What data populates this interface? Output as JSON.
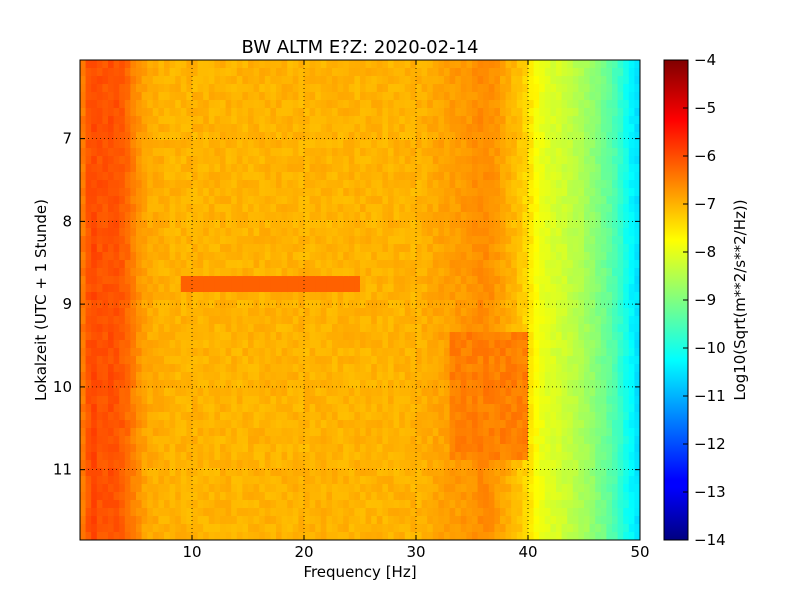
{
  "chart_data": {
    "type": "heatmap",
    "title": "BW ALTM E?Z: 2020-02-14",
    "xlabel": "Frequency [Hz]",
    "ylabel": "Lokalzeit (UTC + 1 Stunde)",
    "xlim": [
      0,
      50
    ],
    "ylim": [
      11.85,
      6.05
    ],
    "x_ticks": [
      10,
      20,
      30,
      40,
      50
    ],
    "y_ticks": [
      7,
      8,
      9,
      10,
      11
    ],
    "grid": true,
    "colormap": "jet",
    "colorbar": {
      "label": "Log10(Sqrt(m**2/s**2/Hz))",
      "range": [
        -14,
        -4
      ],
      "ticks": [
        -4,
        -5,
        -6,
        -7,
        -8,
        -9,
        -10,
        -11,
        -12,
        -13,
        -14
      ]
    },
    "spectrum_profile": {
      "frequency_hz": [
        0,
        1,
        2,
        3,
        4,
        5,
        6,
        8,
        10,
        15,
        20,
        25,
        30,
        33,
        35,
        36,
        37,
        38,
        39,
        40,
        41,
        42,
        43,
        44,
        45,
        46,
        47,
        48,
        49,
        50
      ],
      "log10_amplitude": [
        -6.6,
        -5.9,
        -6.1,
        -6.0,
        -6.2,
        -6.6,
        -6.9,
        -7.0,
        -7.0,
        -7.0,
        -7.0,
        -7.0,
        -7.0,
        -6.8,
        -6.7,
        -6.6,
        -6.7,
        -6.9,
        -7.1,
        -7.4,
        -7.9,
        -8.1,
        -8.2,
        -8.4,
        -8.6,
        -8.9,
        -9.2,
        -9.6,
        -10.2,
        -10.6
      ]
    },
    "features": [
      {
        "frequency_range_hz": [
          9,
          25
        ],
        "time": 8.74,
        "log10_amplitude": -6.2
      },
      {
        "frequency_range_hz": [
          33,
          40
        ],
        "time_range": [
          9.35,
          10.9
        ],
        "log10_amplitude": -6.5
      }
    ]
  }
}
